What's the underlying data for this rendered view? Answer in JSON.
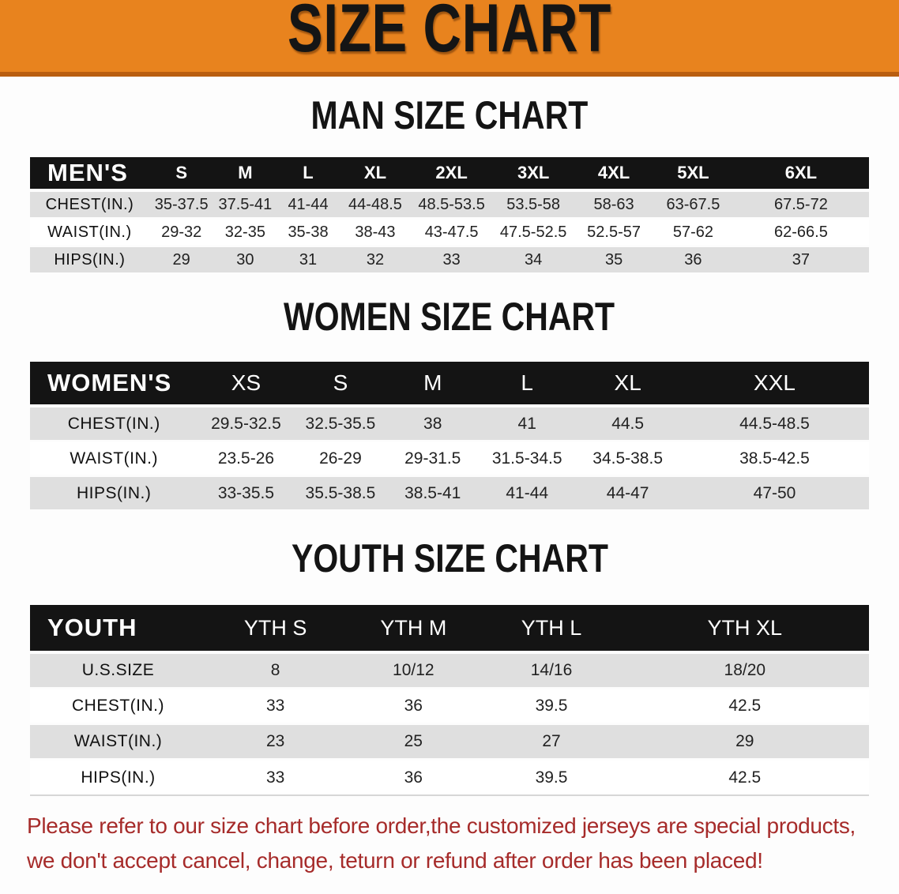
{
  "banner": {
    "title": "SIZE CHART"
  },
  "colors": {
    "banner_orange": "#E8831E",
    "banner_edge": "#B95E10",
    "header_bar_black": "#141414",
    "header_bar_text": "#FFFFFF",
    "row_shaded_gray": "#DFDFDF",
    "row_white": "#FFFFFF",
    "disclaimer_red": "#A62B2A"
  },
  "tables": [
    {
      "id": "men",
      "title": "MAN SIZE CHART",
      "corner": "MEN'S",
      "sizes": [
        "S",
        "M",
        "L",
        "XL",
        "2XL",
        "3XL",
        "4XL",
        "5XL",
        "6XL"
      ],
      "rows": [
        {
          "label": "CHEST(IN.)",
          "shaded": true,
          "values": [
            "35-37.5",
            "37.5-41",
            "41-44",
            "44-48.5",
            "48.5-53.5",
            "53.5-58",
            "58-63",
            "63-67.5",
            "67.5-72"
          ]
        },
        {
          "label": "WAIST(IN.)",
          "shaded": false,
          "values": [
            "29-32",
            "32-35",
            "35-38",
            "38-43",
            "43-47.5",
            "47.5-52.5",
            "52.5-57",
            "57-62",
            "62-66.5"
          ]
        },
        {
          "label": "HIPS(IN.)",
          "shaded": true,
          "values": [
            "29",
            "30",
            "31",
            "32",
            "33",
            "34",
            "35",
            "36",
            "37"
          ]
        }
      ]
    },
    {
      "id": "women",
      "title": "WOMEN SIZE CHART",
      "corner": "WOMEN'S",
      "sizes": [
        "XS",
        "S",
        "M",
        "L",
        "XL",
        "XXL"
      ],
      "rows": [
        {
          "label": "CHEST(IN.)",
          "shaded": true,
          "values": [
            "29.5-32.5",
            "32.5-35.5",
            "38",
            "41",
            "44.5",
            "44.5-48.5"
          ]
        },
        {
          "label": "WAIST(IN.)",
          "shaded": false,
          "values": [
            "23.5-26",
            "26-29",
            "29-31.5",
            "31.5-34.5",
            "34.5-38.5",
            "38.5-42.5"
          ]
        },
        {
          "label": "HIPS(IN.)",
          "shaded": true,
          "values": [
            "33-35.5",
            "35.5-38.5",
            "38.5-41",
            "41-44",
            "44-47",
            "47-50"
          ]
        }
      ]
    },
    {
      "id": "youth",
      "title": "YOUTH SIZE CHART",
      "corner": "YOUTH",
      "sizes": [
        "YTH S",
        "YTH M",
        "YTH L",
        "YTH XL"
      ],
      "rows": [
        {
          "label": "U.S.SIZE",
          "shaded": true,
          "values": [
            "8",
            "10/12",
            "14/16",
            "18/20"
          ]
        },
        {
          "label": "CHEST(IN.)",
          "shaded": false,
          "values": [
            "33",
            "36",
            "39.5",
            "42.5"
          ]
        },
        {
          "label": "WAIST(IN.)",
          "shaded": true,
          "values": [
            "23",
            "25",
            "27",
            "29"
          ]
        },
        {
          "label": "HIPS(IN.)",
          "shaded": false,
          "values": [
            "33",
            "36",
            "39.5",
            "42.5"
          ]
        }
      ]
    }
  ],
  "disclaimer": {
    "line1": "Please refer to our size chart before order,the customized jerseys are special products,",
    "line2": "we don't accept cancel, change, teturn or refund after order has been placed!"
  }
}
